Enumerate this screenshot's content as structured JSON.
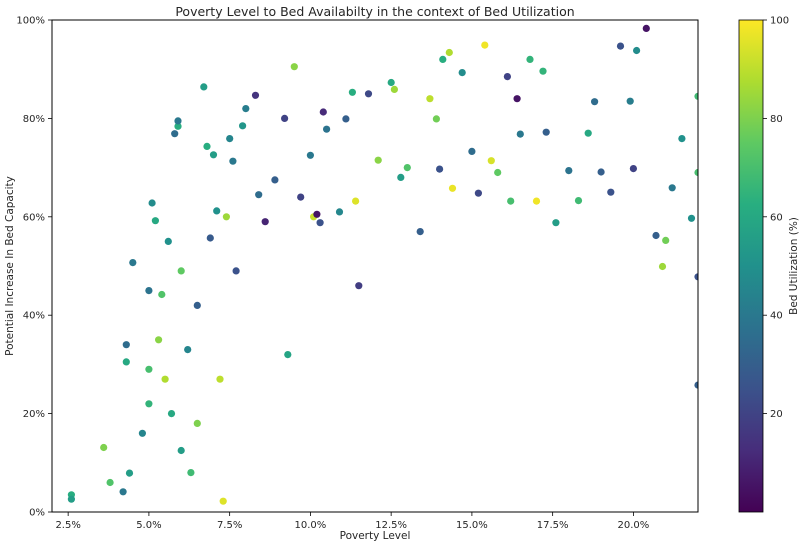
{
  "chart_data": {
    "type": "scatter",
    "title": "Poverty Level to Bed Availabilty in the context of Bed Utilization",
    "xlabel": "Poverty Level",
    "ylabel": "Potential Increase In Bed Capacity",
    "xlim": [
      2.0,
      22.0
    ],
    "ylim": [
      0,
      100
    ],
    "x_ticks": [
      2.5,
      5.0,
      7.5,
      10.0,
      12.5,
      15.0,
      17.5,
      20.0
    ],
    "x_tick_labels": [
      "2.5%",
      "5.0%",
      "7.5%",
      "10.0%",
      "12.5%",
      "15.0%",
      "17.5%",
      "20.0%"
    ],
    "y_ticks": [
      0,
      20,
      40,
      60,
      80,
      100
    ],
    "y_tick_labels": [
      "0%",
      "20%",
      "40%",
      "60%",
      "80%",
      "100%"
    ],
    "grid": false,
    "colormap": "viridis",
    "colorbar": {
      "label": "Bed Utilization (%)",
      "range": [
        0,
        100
      ],
      "ticks": [
        20,
        40,
        60,
        80,
        100
      ],
      "tick_labels": [
        "20",
        "40",
        "60",
        "80",
        "100"
      ]
    },
    "points": [
      [
        2.6,
        3.5,
        62
      ],
      [
        2.6,
        2.6,
        55
      ],
      [
        3.6,
        13.1,
        80
      ],
      [
        3.8,
        6.0,
        72
      ],
      [
        4.2,
        4.1,
        40
      ],
      [
        4.3,
        34.0,
        35
      ],
      [
        4.3,
        30.5,
        60
      ],
      [
        4.5,
        50.7,
        40
      ],
      [
        4.4,
        7.9,
        55
      ],
      [
        4.8,
        16.0,
        45
      ],
      [
        5.0,
        45.0,
        38
      ],
      [
        5.0,
        29.0,
        70
      ],
      [
        5.0,
        22.0,
        65
      ],
      [
        5.1,
        62.8,
        48
      ],
      [
        5.2,
        59.2,
        60
      ],
      [
        5.3,
        35.0,
        82
      ],
      [
        5.4,
        44.2,
        72
      ],
      [
        5.5,
        27.0,
        88
      ],
      [
        5.6,
        55.0,
        50
      ],
      [
        5.7,
        20.0,
        60
      ],
      [
        5.8,
        76.9,
        35
      ],
      [
        5.9,
        78.4,
        62
      ],
      [
        5.9,
        79.5,
        40
      ],
      [
        6.0,
        12.5,
        55
      ],
      [
        6.0,
        49.0,
        75
      ],
      [
        6.2,
        33.0,
        45
      ],
      [
        6.3,
        8.0,
        68
      ],
      [
        6.5,
        42.0,
        30
      ],
      [
        6.5,
        18.0,
        80
      ],
      [
        6.7,
        86.4,
        55
      ],
      [
        6.8,
        74.3,
        62
      ],
      [
        6.9,
        55.7,
        28
      ],
      [
        7.0,
        72.6,
        55
      ],
      [
        7.1,
        61.2,
        50
      ],
      [
        7.2,
        27.0,
        90
      ],
      [
        7.3,
        2.2,
        95
      ],
      [
        7.4,
        60.0,
        85
      ],
      [
        7.5,
        75.9,
        45
      ],
      [
        7.6,
        71.3,
        40
      ],
      [
        7.7,
        49.0,
        25
      ],
      [
        7.9,
        78.5,
        52
      ],
      [
        8.0,
        82.0,
        42
      ],
      [
        8.3,
        84.7,
        15
      ],
      [
        8.4,
        64.5,
        35
      ],
      [
        8.6,
        59.0,
        10
      ],
      [
        8.9,
        67.5,
        30
      ],
      [
        9.2,
        80.0,
        20
      ],
      [
        9.3,
        32.0,
        58
      ],
      [
        9.5,
        90.5,
        82
      ],
      [
        9.7,
        64.0,
        20
      ],
      [
        10.0,
        72.5,
        40
      ],
      [
        10.1,
        60.0,
        92
      ],
      [
        10.2,
        60.5,
        5
      ],
      [
        10.3,
        58.8,
        25
      ],
      [
        10.4,
        81.3,
        12
      ],
      [
        10.5,
        77.8,
        38
      ],
      [
        10.9,
        61.0,
        46
      ],
      [
        11.1,
        79.9,
        30
      ],
      [
        11.3,
        85.3,
        62
      ],
      [
        11.4,
        63.2,
        95
      ],
      [
        11.5,
        46.0,
        18
      ],
      [
        11.8,
        85.0,
        22
      ],
      [
        12.1,
        71.5,
        82
      ],
      [
        12.5,
        87.3,
        60
      ],
      [
        12.6,
        85.9,
        85
      ],
      [
        12.8,
        68.0,
        55
      ],
      [
        13.0,
        70.0,
        72
      ],
      [
        13.4,
        57.0,
        30
      ],
      [
        13.7,
        84.0,
        90
      ],
      [
        13.9,
        79.9,
        78
      ],
      [
        14.0,
        69.7,
        25
      ],
      [
        14.1,
        92.0,
        62
      ],
      [
        14.3,
        93.4,
        88
      ],
      [
        14.4,
        65.8,
        97
      ],
      [
        14.7,
        89.3,
        48
      ],
      [
        15.0,
        73.3,
        35
      ],
      [
        15.2,
        64.8,
        22
      ],
      [
        15.4,
        94.9,
        98
      ],
      [
        15.6,
        71.4,
        94
      ],
      [
        15.8,
        69.0,
        75
      ],
      [
        16.1,
        88.5,
        20
      ],
      [
        16.2,
        63.2,
        70
      ],
      [
        16.4,
        84.0,
        5
      ],
      [
        16.5,
        76.8,
        40
      ],
      [
        16.8,
        92.0,
        65
      ],
      [
        17.0,
        63.2,
        98
      ],
      [
        17.2,
        89.6,
        65
      ],
      [
        17.3,
        77.2,
        30
      ],
      [
        17.6,
        58.8,
        55
      ],
      [
        18.0,
        69.4,
        38
      ],
      [
        18.3,
        63.3,
        68
      ],
      [
        18.6,
        77.0,
        60
      ],
      [
        18.8,
        83.4,
        35
      ],
      [
        19.0,
        69.1,
        30
      ],
      [
        19.3,
        65.0,
        25
      ],
      [
        19.6,
        94.7,
        25
      ],
      [
        19.9,
        83.5,
        42
      ],
      [
        20.0,
        69.8,
        20
      ],
      [
        20.1,
        93.8,
        48
      ],
      [
        20.4,
        98.3,
        5
      ],
      [
        20.7,
        56.2,
        30
      ],
      [
        20.9,
        49.9,
        85
      ],
      [
        21.0,
        55.2,
        78
      ],
      [
        21.2,
        65.9,
        40
      ],
      [
        21.5,
        75.9,
        50
      ],
      [
        21.8,
        59.7,
        50
      ],
      [
        22.0,
        69.0,
        70
      ],
      [
        22.0,
        84.5,
        68
      ],
      [
        22.0,
        47.8,
        25
      ],
      [
        22.0,
        25.8,
        30
      ]
    ]
  }
}
